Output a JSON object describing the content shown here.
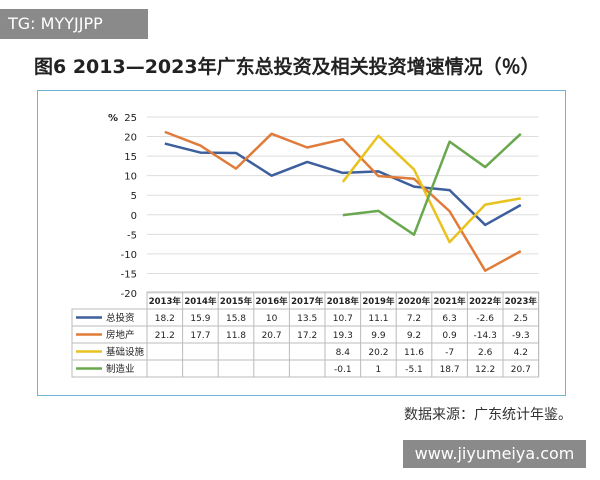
{
  "watermark": "TG: MYYJJPP",
  "site": "www.jiyumeiya.com",
  "chart_data": {
    "type": "line",
    "title": "图6  2013—2023年广东总投资及相关投资增速情况（％）",
    "ylabel": "%",
    "ylim": [
      -20,
      25
    ],
    "yticks": [
      25,
      20,
      15,
      10,
      5,
      0,
      -5,
      -10,
      -15,
      -20
    ],
    "grid": true,
    "legend": "table-left",
    "categories": [
      "2013年",
      "2014年",
      "2015年",
      "2016年",
      "2017年",
      "2018年",
      "2019年",
      "2020年",
      "2021年",
      "2022年",
      "2023年"
    ],
    "series": [
      {
        "name": "总投资",
        "color": "#3d5f9e",
        "values": [
          18.2,
          15.9,
          15.8,
          10,
          13.5,
          10.7,
          11.1,
          7.2,
          6.3,
          -2.6,
          2.5
        ]
      },
      {
        "name": "房地产",
        "color": "#e07b39",
        "values": [
          21.2,
          17.7,
          11.8,
          20.7,
          17.2,
          19.3,
          9.9,
          9.2,
          0.9,
          -14.3,
          -9.3
        ]
      },
      {
        "name": "基础设施",
        "color": "#e8c21f",
        "values": [
          null,
          null,
          null,
          null,
          null,
          8.4,
          20.2,
          11.6,
          -7,
          2.6,
          4.2
        ]
      },
      {
        "name": "制造业",
        "color": "#6aa84f",
        "values": [
          null,
          null,
          null,
          null,
          null,
          -0.1,
          1,
          -5.1,
          18.7,
          12.2,
          20.7
        ]
      }
    ],
    "source": "数据来源：广东统计年鉴。"
  }
}
